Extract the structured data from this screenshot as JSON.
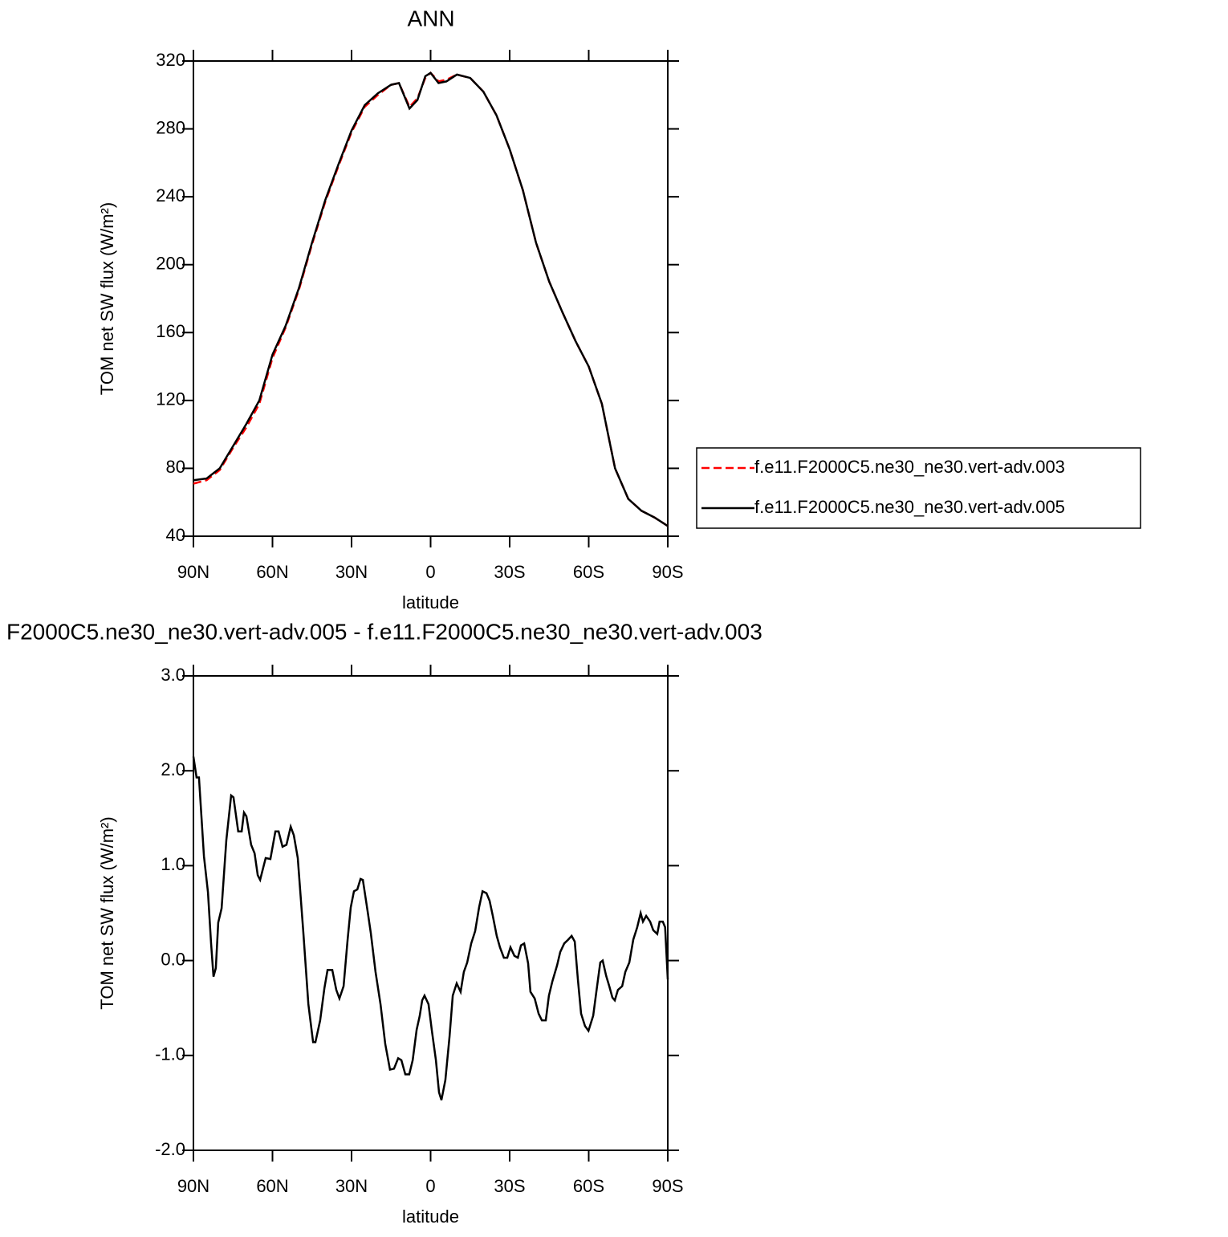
{
  "chart_data": [
    {
      "type": "line",
      "title": "ANN",
      "x_label": "latitude",
      "y_label": "TOM net SW flux (W/m²)",
      "x": [
        90,
        85,
        80,
        75,
        70,
        65,
        60,
        55,
        50,
        45,
        40,
        35,
        30,
        25,
        20,
        15,
        12,
        8,
        5,
        2,
        0,
        -3,
        -6,
        -10,
        -15,
        -20,
        -25,
        -30,
        -35,
        -40,
        -45,
        -50,
        -55,
        -60,
        -65,
        -68,
        -70,
        -75,
        -80,
        -85,
        -90
      ],
      "series": [
        {
          "name": "f.e11.F2000C5.ne30_ne30.vert-adv.003",
          "color": "#ff0000",
          "linestyle": "dashed",
          "values": [
            71,
            73,
            79,
            92,
            104,
            118,
            145,
            163,
            185,
            212,
            237,
            258,
            278,
            293,
            300,
            306,
            307,
            293,
            298,
            310,
            313,
            308,
            309,
            312,
            310,
            302,
            288,
            268,
            244,
            213,
            190,
            172,
            155,
            140,
            118,
            95,
            80,
            62,
            55,
            51,
            46
          ]
        },
        {
          "name": "f.e11.F2000C5.ne30_ne30.vert-adv.005",
          "color": "#000000",
          "linestyle": "solid",
          "values": [
            73,
            74,
            80,
            93,
            106,
            120,
            147,
            164,
            186,
            213,
            238,
            259,
            279,
            294,
            301,
            306,
            307,
            292,
            297,
            311,
            313,
            307,
            308,
            312,
            310,
            302,
            288,
            268,
            244,
            213,
            190,
            172,
            155,
            140,
            118,
            95,
            80,
            62,
            55,
            51,
            46
          ]
        }
      ],
      "xlim": [
        90,
        -90
      ],
      "xticks": [
        {
          "value": 90,
          "label": "90N"
        },
        {
          "value": 60,
          "label": "60N"
        },
        {
          "value": 30,
          "label": "30N"
        },
        0,
        {
          "value": -30,
          "label": "30S"
        },
        {
          "value": -60,
          "label": "60S"
        },
        {
          "value": -90,
          "label": "90S"
        }
      ],
      "ylim": [
        40,
        320
      ],
      "yticks": [
        40,
        80,
        120,
        160,
        200,
        240,
        280,
        320
      ],
      "legend": "right"
    },
    {
      "type": "line",
      "title": "F2000C5.ne30_ne30.vert-adv.005 - f.e11.F2000C5.ne30_ne30.vert-adv.003",
      "x_label": "latitude",
      "y_label": "TOM net SW flux (W/m²)",
      "x": [
        90,
        88.8,
        87.9,
        86,
        84.5,
        83.3,
        82.4,
        81.5,
        80.6,
        79.3,
        77.5,
        75.7,
        74.8,
        73,
        71.7,
        70.8,
        69.9,
        68.1,
        66.8,
        65.6,
        64.7,
        62.6,
        60.8,
        58.9,
        57.7,
        56.2,
        54.7,
        53.1,
        51.9,
        50.4,
        48.3,
        46.4,
        44.6,
        43.7,
        41.9,
        40.3,
        39.1,
        37.3,
        35.8,
        34.6,
        33,
        31.5,
        30.3,
        29.1,
        27.8,
        26.6,
        25.7,
        23.9,
        22.7,
        20.9,
        19,
        17.2,
        15.4,
        13.9,
        12.3,
        11.1,
        9.6,
        8.1,
        6.8,
        5.3,
        4.1,
        3.2,
        2.3,
        0.8,
        -0.5,
        -2,
        -3.2,
        -4.1,
        -5.6,
        -7.2,
        -8.4,
        -9.9,
        -11.4,
        -12.6,
        -13.9,
        -15.4,
        -16.9,
        -18.4,
        -19.7,
        -21.2,
        -22.4,
        -23.6,
        -25.1,
        -26.3,
        -27.8,
        -29.1,
        -30.3,
        -31.8,
        -33.1,
        -34.3,
        -35.5,
        -37,
        -37.9,
        -39.5,
        -41,
        -42.2,
        -43.7,
        -44.9,
        -46.2,
        -48,
        -49.2,
        -50.7,
        -52.2,
        -53.5,
        -54.7,
        -55.9,
        -57.1,
        -58.6,
        -59.9,
        -61.7,
        -62.9,
        -64.4,
        -65.3,
        -66.6,
        -67.8,
        -69,
        -69.9,
        -71.1,
        -72.7,
        -73.9,
        -75.4,
        -76.9,
        -78.4,
        -79.7,
        -80.6,
        -81.8,
        -83.3,
        -84.5,
        -86,
        -86.9,
        -88.1,
        -89,
        -90
      ],
      "series": [
        {
          "name": null,
          "color": "#000000",
          "linestyle": "solid",
          "values": [
            2.15,
            1.93,
            1.93,
            1.1,
            0.72,
            0.18,
            -0.17,
            -0.08,
            0.4,
            0.55,
            1.27,
            1.74,
            1.72,
            1.36,
            1.36,
            1.56,
            1.52,
            1.22,
            1.13,
            0.9,
            0.85,
            1.08,
            1.07,
            1.36,
            1.36,
            1.2,
            1.22,
            1.41,
            1.32,
            1.08,
            0.3,
            -0.46,
            -0.86,
            -0.86,
            -0.63,
            -0.29,
            -0.1,
            -0.1,
            -0.31,
            -0.4,
            -0.27,
            0.22,
            0.56,
            0.73,
            0.75,
            0.86,
            0.85,
            0.52,
            0.29,
            -0.12,
            -0.46,
            -0.88,
            -1.15,
            -1.14,
            -1.03,
            -1.05,
            -1.2,
            -1.2,
            -1.05,
            -0.73,
            -0.58,
            -0.42,
            -0.37,
            -0.46,
            -0.74,
            -1.05,
            -1.39,
            -1.47,
            -1.26,
            -0.8,
            -0.37,
            -0.24,
            -0.33,
            -0.12,
            -0.02,
            0.18,
            0.31,
            0.56,
            0.73,
            0.71,
            0.63,
            0.47,
            0.26,
            0.14,
            0.03,
            0.03,
            0.14,
            0.05,
            0.03,
            0.16,
            0.18,
            -0.03,
            -0.33,
            -0.4,
            -0.56,
            -0.63,
            -0.63,
            -0.37,
            -0.22,
            -0.05,
            0.09,
            0.18,
            0.22,
            0.26,
            0.2,
            -0.2,
            -0.56,
            -0.69,
            -0.74,
            -0.58,
            -0.33,
            -0.02,
            0,
            -0.16,
            -0.27,
            -0.39,
            -0.42,
            -0.31,
            -0.27,
            -0.12,
            -0.02,
            0.22,
            0.35,
            0.5,
            0.41,
            0.47,
            0.41,
            0.32,
            0.28,
            0.41,
            0.41,
            0.35,
            -0.2
          ]
        }
      ],
      "xlim": [
        90,
        -90
      ],
      "xticks": [
        {
          "value": 90,
          "label": "90N"
        },
        {
          "value": 60,
          "label": "60N"
        },
        {
          "value": 30,
          "label": "30N"
        },
        0,
        {
          "value": -30,
          "label": "30S"
        },
        {
          "value": -60,
          "label": "60S"
        },
        {
          "value": -90,
          "label": "90S"
        }
      ],
      "ylim": [
        -2,
        3
      ],
      "yticks": [
        {
          "value": -2,
          "label": "-2.0"
        },
        {
          "value": -1,
          "label": "-1.0"
        },
        {
          "value": 0,
          "label": "0.0"
        },
        {
          "value": 1,
          "label": "1.0"
        },
        {
          "value": 2,
          "label": "2.0"
        },
        {
          "value": 3,
          "label": "3.0"
        }
      ]
    }
  ]
}
